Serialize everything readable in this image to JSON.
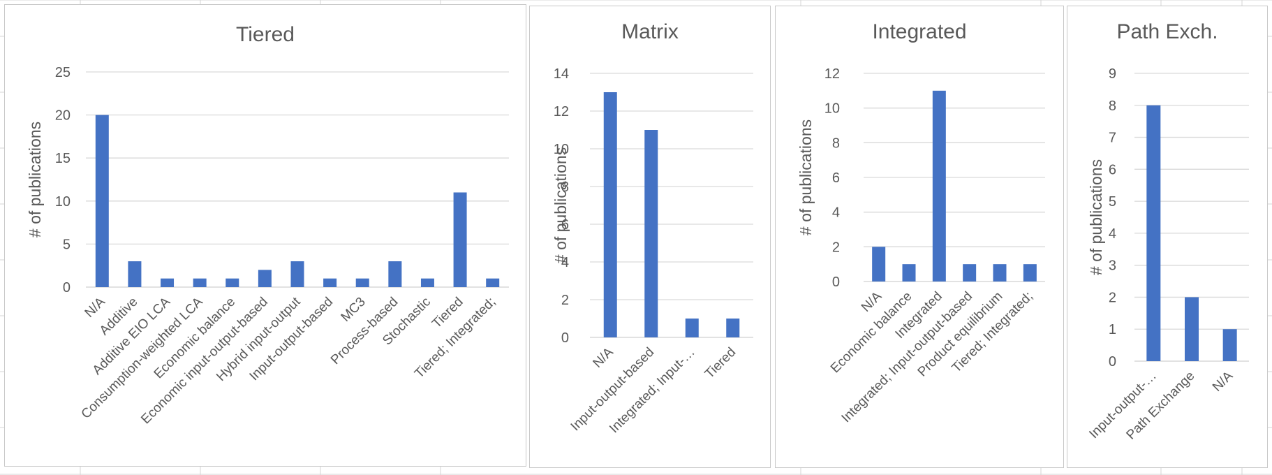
{
  "colors": {
    "bar": "#4472c4",
    "grid": "#d9d9d9",
    "text": "#595959",
    "border": "#c8c8c8"
  },
  "chart_data": [
    {
      "type": "bar",
      "title": "Tiered",
      "ylabel": "# of publications",
      "xlabel": "",
      "ylim": [
        0,
        25
      ],
      "yticks": [
        0,
        5,
        10,
        15,
        20,
        25
      ],
      "categories": [
        "N/A",
        "Additive",
        "Additive EIO LCA",
        "Consumption-weighted LCA",
        "Economic balance",
        "Economic input-output-based",
        "Hybrid input-output",
        "Input-output-based",
        "MC3",
        "Process-based",
        "Stochastic",
        "Tiered",
        "Tiered; Integrated;"
      ],
      "values": [
        20,
        3,
        1,
        1,
        1,
        2,
        3,
        1,
        1,
        3,
        1,
        11,
        1
      ],
      "grid": true,
      "legend": "none"
    },
    {
      "type": "bar",
      "title": "Matrix",
      "ylabel": "# of publications",
      "xlabel": "",
      "ylim": [
        0,
        14
      ],
      "yticks": [
        0,
        2,
        4,
        6,
        8,
        10,
        12,
        14
      ],
      "categories": [
        "N/A",
        "Input-output-based",
        "Integrated; Input-…",
        "Tiered"
      ],
      "values": [
        13,
        11,
        1,
        1
      ],
      "grid": true,
      "legend": "none"
    },
    {
      "type": "bar",
      "title": "Integrated",
      "ylabel": "# of publications",
      "xlabel": "",
      "ylim": [
        0,
        12
      ],
      "yticks": [
        0,
        2,
        4,
        6,
        8,
        10,
        12
      ],
      "categories": [
        "N/A",
        "Economic balance",
        "Integrated",
        "Integrated; Input-output-based",
        "Product equilibrium",
        "Tiered; Integrated;"
      ],
      "values": [
        2,
        1,
        11,
        1,
        1,
        1
      ],
      "grid": true,
      "legend": "none"
    },
    {
      "type": "bar",
      "title": "Path Exch.",
      "ylabel": "# of publications",
      "xlabel": "",
      "ylim": [
        0,
        9
      ],
      "yticks": [
        0,
        1,
        2,
        3,
        4,
        5,
        6,
        7,
        8,
        9
      ],
      "categories": [
        "Input-output-…",
        "Path Exchange",
        "N/A"
      ],
      "values": [
        8,
        2,
        1
      ],
      "grid": true,
      "legend": "none"
    }
  ]
}
